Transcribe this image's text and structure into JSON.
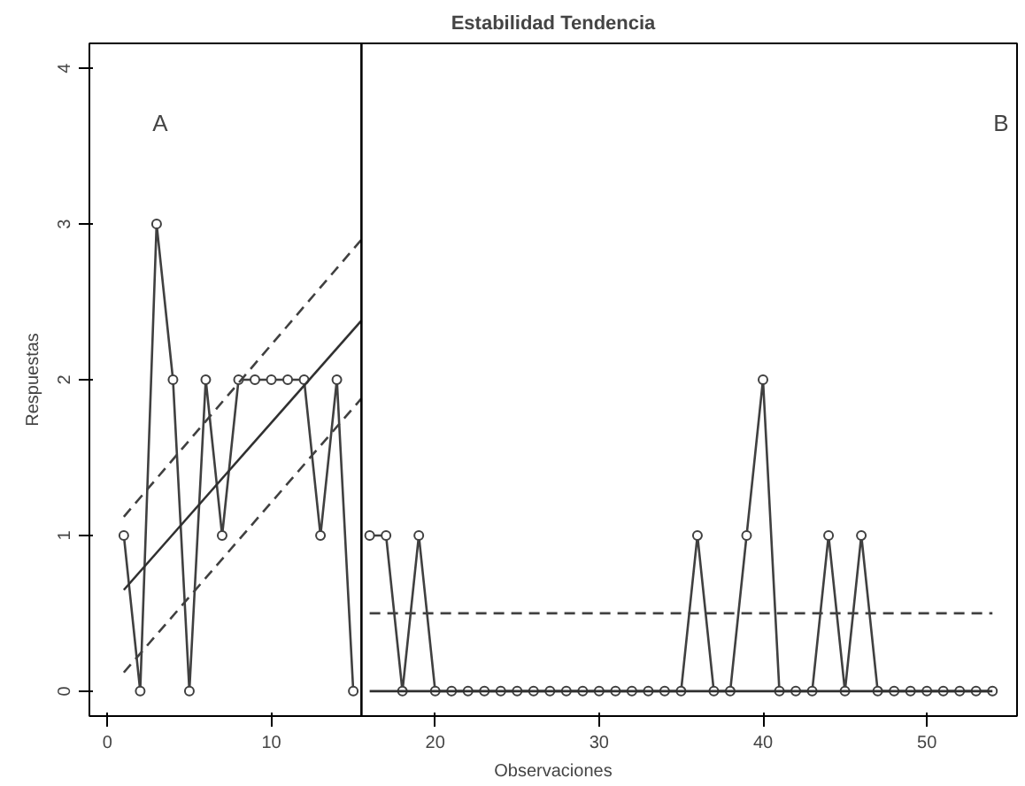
{
  "chart_data": {
    "type": "line",
    "title": "Estabilidad Tendencia",
    "xlabel": "Observaciones",
    "ylabel": "Respuestas",
    "xlim": [
      -1.1,
      55.5
    ],
    "ylim": [
      -0.16,
      4.16
    ],
    "xticks": [
      0,
      10,
      20,
      30,
      40,
      50
    ],
    "yticks": [
      0,
      1,
      2,
      3,
      4
    ],
    "grid": false,
    "marker": "circle",
    "ref_lines": [
      {
        "axis": "x",
        "value": 15.5,
        "color": "#000000"
      }
    ],
    "annotations": [
      "A",
      "B"
    ],
    "series": [
      {
        "color": "#404040",
        "x": [
          1,
          2,
          3,
          4,
          5,
          6,
          7,
          8,
          9,
          10,
          11,
          12,
          13,
          14,
          15
        ],
        "values": [
          1,
          0,
          3,
          2,
          0,
          2,
          1,
          2,
          2,
          2,
          2,
          2,
          1,
          2,
          0
        ]
      },
      {
        "color": "#404040",
        "x": [
          16,
          17,
          18,
          19,
          20,
          21,
          22,
          23,
          24,
          25,
          26,
          27,
          28,
          29,
          30,
          31,
          32,
          33,
          34,
          35,
          36,
          37,
          38,
          39,
          40,
          41,
          42,
          43,
          44,
          45,
          46,
          47,
          48,
          49,
          50,
          51,
          52,
          53,
          54
        ],
        "values": [
          1,
          1,
          0,
          1,
          0,
          0,
          0,
          0,
          0,
          0,
          0,
          0,
          0,
          0,
          0,
          0,
          0,
          0,
          0,
          0,
          1,
          0,
          0,
          1,
          2,
          0,
          0,
          0,
          1,
          0,
          1,
          0,
          0,
          0,
          0,
          0,
          0,
          0,
          0
        ]
      },
      {
        "color": "#303030",
        "marker": "none",
        "line_style": "solid",
        "x": [
          1,
          15.5
        ],
        "values": [
          0.65,
          2.38
        ]
      },
      {
        "color": "#404040",
        "marker": "none",
        "line_style": "dashed",
        "x": [
          1,
          15.5
        ],
        "values": [
          1.12,
          2.9
        ]
      },
      {
        "color": "#404040",
        "marker": "none",
        "line_style": "dashed",
        "x": [
          1,
          15.5
        ],
        "values": [
          0.12,
          1.88
        ]
      },
      {
        "color": "#303030",
        "marker": "none",
        "line_style": "solid",
        "x": [
          16,
          54
        ],
        "values": [
          0,
          0
        ]
      },
      {
        "color": "#404040",
        "marker": "none",
        "line_style": "dashed",
        "x": [
          16,
          54
        ],
        "values": [
          0.5,
          0.5
        ]
      }
    ]
  }
}
